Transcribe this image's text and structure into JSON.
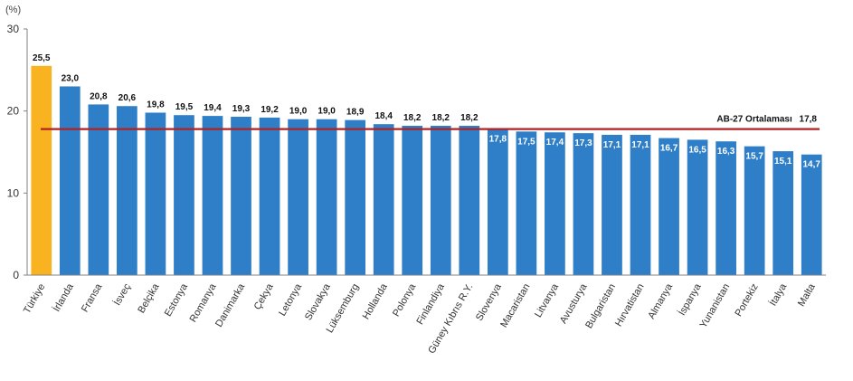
{
  "chart_data": {
    "type": "bar",
    "unit_label": "(%)",
    "ylim": [
      0,
      30
    ],
    "yticks": [
      0,
      10,
      20,
      30
    ],
    "grid": false,
    "categories": [
      "Türkiye",
      "İrlanda",
      "Fransa",
      "İsveç",
      "Belçika",
      "Estonya",
      "Romanya",
      "Danimarka",
      "Çekya",
      "Letonya",
      "Slovakya",
      "Lüksemburg",
      "Hollanda",
      "Polonya",
      "Finlandiya",
      "Güney Kıbrıs R.Y.",
      "Slovenya",
      "Macaristan",
      "Litvanya",
      "Avusturya",
      "Bulgaristan",
      "Hırvatistan",
      "Almanya",
      "İspanya",
      "Yunanistan",
      "Portekiz",
      "İtalya",
      "Malta"
    ],
    "values": [
      25.5,
      23.0,
      20.8,
      20.6,
      19.8,
      19.5,
      19.4,
      19.3,
      19.2,
      19.0,
      19.0,
      18.9,
      18.4,
      18.2,
      18.2,
      18.2,
      17.8,
      17.5,
      17.4,
      17.3,
      17.1,
      17.1,
      16.7,
      16.5,
      16.3,
      15.7,
      15.1,
      14.7
    ],
    "value_labels": [
      "25,5",
      "23,0",
      "20,8",
      "20,6",
      "19,8",
      "19,5",
      "19,4",
      "19,3",
      "19,2",
      "19,0",
      "19,0",
      "18,9",
      "18,4",
      "18,2",
      "18,2",
      "18,2",
      "17,8",
      "17,5",
      "17,4",
      "17,3",
      "17,1",
      "17,1",
      "16,7",
      "16,5",
      "16,3",
      "15,7",
      "15,1",
      "14,7"
    ],
    "reference_line": {
      "label": "AB-27 Ortalaması",
      "value": 17.8,
      "value_label": "17,8"
    },
    "colors": {
      "highlight": "#f9b320",
      "bar": "#2f7fc8",
      "reference": "#b22222",
      "axis": "#808080",
      "text": "#222222"
    }
  }
}
